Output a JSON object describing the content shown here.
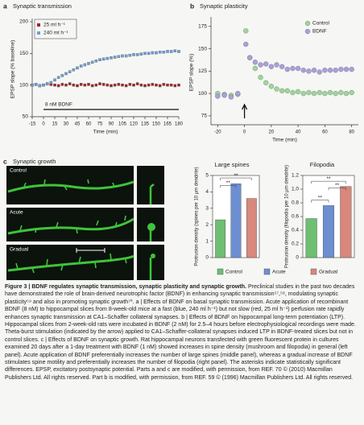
{
  "chart_data": [
    {
      "type": "scatter",
      "panel_label": "a",
      "title": "Synaptic transmission",
      "xlabel": "Time (min)",
      "ylabel": "EPSP slope (% baseline)",
      "marker": "square",
      "x": [
        -15,
        -10,
        -5,
        0,
        5,
        10,
        15,
        20,
        25,
        30,
        35,
        40,
        45,
        50,
        55,
        60,
        65,
        70,
        75,
        80,
        85,
        90,
        95,
        100,
        105,
        110,
        115,
        120,
        125,
        130,
        135,
        140,
        145,
        150,
        155,
        160,
        165,
        170,
        175,
        180
      ],
      "series": [
        {
          "name": "25 ml h⁻¹",
          "color": "#a3242a",
          "values": [
            100,
            101,
            99,
            100,
            102,
            101,
            100,
            99,
            101,
            100,
            102,
            100,
            99,
            101,
            100,
            101,
            99,
            100,
            102,
            101,
            100,
            99,
            100,
            101,
            100,
            99,
            101,
            100,
            102,
            100,
            99,
            100,
            101,
            100,
            99,
            101,
            100,
            100,
            99,
            100
          ]
        },
        {
          "name": "240 ml h⁻¹",
          "color": "#6f9fd9",
          "values": [
            100,
            101,
            99,
            100,
            102,
            104,
            108,
            112,
            115,
            118,
            121,
            124,
            127,
            130,
            132,
            134,
            136,
            138,
            140,
            141,
            142,
            143,
            144,
            145,
            146,
            146,
            147,
            148,
            148,
            149,
            150,
            150,
            151,
            151,
            152,
            152,
            153,
            153,
            154,
            153
          ]
        }
      ],
      "xlim": [
        -15,
        180
      ],
      "xticks": [
        -15,
        0,
        15,
        30,
        45,
        60,
        75,
        90,
        105,
        120,
        135,
        150,
        165,
        180
      ],
      "ylim": [
        50,
        200
      ],
      "yticks": [
        50,
        100,
        150,
        200
      ],
      "annotation": "8 nM BDNF"
    },
    {
      "type": "scatter",
      "panel_label": "b",
      "title": "Synaptic plasticity",
      "xlabel": "Time (min)",
      "ylabel": "EPSP slope (%)",
      "marker": "circle",
      "x": [
        -20,
        -15,
        -10,
        -5,
        1,
        4,
        8,
        12,
        16,
        20,
        24,
        28,
        32,
        36,
        40,
        44,
        48,
        52,
        56,
        60,
        64,
        68,
        72,
        76,
        80
      ],
      "series": [
        {
          "name": "Control",
          "color": "#9ed69a",
          "values": [
            100,
            99,
            98,
            99,
            170,
            140,
            128,
            118,
            112,
            108,
            105,
            103,
            103,
            101,
            102,
            100,
            101,
            100,
            101,
            100,
            101,
            100,
            101,
            100,
            101
          ]
        },
        {
          "name": "BDNF",
          "color": "#ab9fdc",
          "values": [
            97,
            98,
            96,
            100,
            155,
            140,
            135,
            132,
            133,
            130,
            132,
            130,
            127,
            128,
            128,
            126,
            125,
            126,
            124,
            126,
            126,
            126,
            127,
            127,
            127
          ]
        }
      ],
      "xlim": [
        -25,
        85
      ],
      "xticks": [
        -20,
        0,
        20,
        40,
        60,
        80
      ],
      "ylim": [
        65,
        182
      ],
      "yticks": [
        75,
        100,
        125,
        150,
        175
      ]
    },
    {
      "type": "bar",
      "title": "Large spines",
      "ylabel": "Protrusion density (spines per 10 µm dendrite)",
      "categories": [
        "Control",
        "Acute",
        "Gradual"
      ],
      "colors": [
        "#6dbf72",
        "#6d8fd2",
        "#d8887d"
      ],
      "values": [
        2.3,
        4.5,
        3.6
      ],
      "ylim": [
        0,
        5
      ],
      "yticks": [
        0,
        1,
        2,
        3,
        4,
        5
      ],
      "annotations": [
        "**",
        "**"
      ]
    },
    {
      "type": "bar",
      "title": "Filopodia",
      "ylabel": "Protrusion density (filopodia per 10 µm dendrite)",
      "categories": [
        "Control",
        "Acute",
        "Gradual"
      ],
      "colors": [
        "#6dbf72",
        "#6d8fd2",
        "#d8887d"
      ],
      "values": [
        0.57,
        0.76,
        1.04
      ],
      "ylim": [
        0,
        1.2
      ],
      "yticks": [
        0,
        0.2,
        0.4,
        0.6,
        0.8,
        {
          "value": 1.0,
          "label": "1.0"
        },
        1.2
      ],
      "annotations": [
        "**",
        "**",
        "**"
      ]
    }
  ],
  "panel_c": {
    "label": "c",
    "title": "Synaptic growth",
    "images": [
      "Control",
      "Acute",
      "Gradual"
    ]
  },
  "caption": {
    "label": "Figure 3 |",
    "heading": "BDNF regulates synaptic transmission, synaptic plasticity and synaptic growth.",
    "body": "Preclinical studies in the past two decades have demonstrated the role of brain-derived neurotrophic factor (BDNF) in enhancing synaptic transmission⁵⁷,⁵⁸, modulating synaptic plasticity⁵⁹ and also in promoting synaptic growth⁷⁰. a | Effects of BDNF on basal synaptic transmission. Acute application of recombinant BDNF (8 nM) to hippocampal slices from 8-week-old mice at a fast (blue, 240 ml h⁻¹) but not slow (red, 25 ml h⁻¹) perfusion rate rapidly enhances synaptic transmission at CA1–Schaffer collateral synapses. b | Effects of BDNF on hippocampal long-term potentiation (LTP). Hippocampal slices from 2-week-old rats were incubated in BDNF (2 nM) for 2.5–4 hours before electrophysiological recordings were made. Theta-burst stimulation (indicated by the arrow) applied to CA1–Schaffer-collateral synapses induced LTP in BDNF-treated slices but not in control slices. c | Effects of BDNF on synaptic growth. Rat hippocampal neurons transfected with green fluorescent protein in cultures examined 20 days after a 1-day treatment with BDNF (1 nM) showed increases in spine density (mushroom and filopodia) in general (left panel). Acute application of BDNF preferentially increases the number of large spines (middle panel), whereas a gradual increase of BDNF stimulates spine motility and preferentially increases the number of filopodia (right panel). The asterisks indicate statistically significant differences. EPSP, excitatory postsynaptic potential. Parts a and c are modified, with permission, from REF. 70 © (2010) Macmillan Publishers Ltd. All rights reserved. Part b is modified, with permission, from REF. 59 © (1996) Macmillan Publishers Ltd. All rights reserved."
  }
}
